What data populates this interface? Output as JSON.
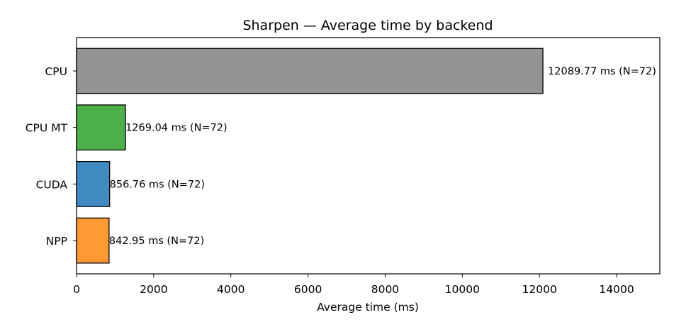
{
  "chart_data": {
    "type": "bar",
    "orientation": "horizontal",
    "title": "Sharpen — Average time by backend",
    "xlabel": "Average time (ms)",
    "ylabel": "",
    "xlim": [
      0,
      15120
    ],
    "xticks": [
      0,
      2000,
      4000,
      6000,
      8000,
      10000,
      12000,
      14000
    ],
    "grid": false,
    "categories": [
      "CPU",
      "CPU MT",
      "CUDA",
      "NPP"
    ],
    "values": [
      12089.77,
      1269.04,
      856.76,
      842.95
    ],
    "counts": [
      72,
      72,
      72,
      72
    ],
    "data_labels": [
      "12089.77 ms  (N=72)",
      "1269.04 ms  (N=72)",
      "856.76 ms  (N=72)",
      "842.95 ms  (N=72)"
    ],
    "colors": [
      "#939393",
      "#4daf4a",
      "#428bc2",
      "#ff9934"
    ],
    "edge_color": "#000000"
  }
}
